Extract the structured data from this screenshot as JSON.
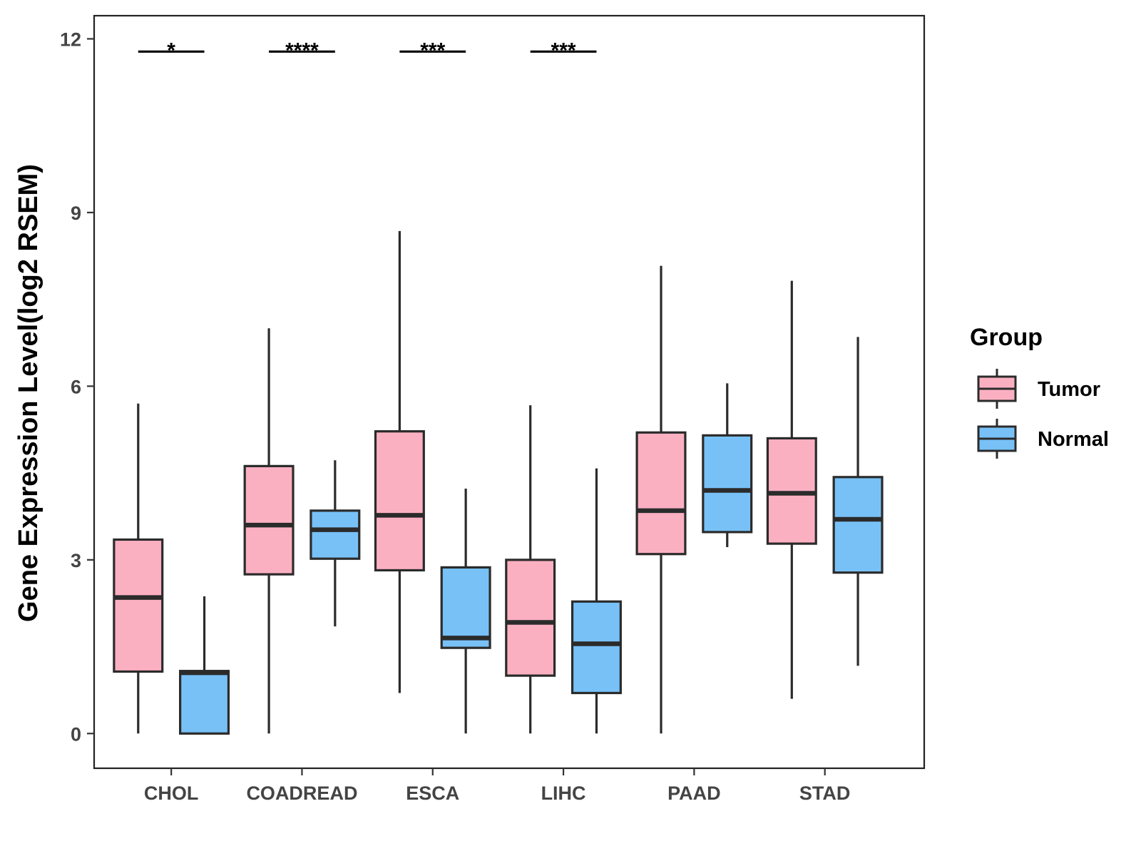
{
  "chart_data": {
    "type": "boxplot",
    "ylabel": "Gene Expression Level(log2 RSEM)",
    "xlabel": "",
    "ylim": [
      -0.6,
      12.4
    ],
    "yticks": [
      0,
      3,
      6,
      9,
      12
    ],
    "ytick_labels": [
      "0",
      "3",
      "6",
      "9",
      "12"
    ],
    "categories": [
      "CHOL",
      "COADREAD",
      "ESCA",
      "LIHC",
      "PAAD",
      "STAD"
    ],
    "legend": {
      "title": "Group",
      "position": "right",
      "entries": [
        {
          "name": "Tumor",
          "color": "#FBB0C2"
        },
        {
          "name": "Normal",
          "color": "#78C1F7"
        }
      ]
    },
    "series": [
      {
        "name": "Tumor",
        "color": "#FBB0C2",
        "boxes": [
          {
            "min": 0.0,
            "q1": 1.07,
            "median": 2.35,
            "q3": 3.35,
            "max": 5.7
          },
          {
            "min": 0.0,
            "q1": 2.75,
            "median": 3.6,
            "q3": 4.62,
            "max": 7.0
          },
          {
            "min": 0.7,
            "q1": 2.82,
            "median": 3.77,
            "q3": 5.22,
            "max": 8.68
          },
          {
            "min": 0.0,
            "q1": 1.0,
            "median": 1.92,
            "q3": 3.0,
            "max": 5.67
          },
          {
            "min": 0.0,
            "q1": 3.1,
            "median": 3.85,
            "q3": 5.2,
            "max": 8.08
          },
          {
            "min": 0.6,
            "q1": 3.28,
            "median": 4.15,
            "q3": 5.1,
            "max": 7.82
          }
        ]
      },
      {
        "name": "Normal",
        "color": "#78C1F7",
        "boxes": [
          {
            "min": 0.0,
            "q1": 0.0,
            "median": 1.05,
            "q3": 1.08,
            "max": 2.37
          },
          {
            "min": 1.85,
            "q1": 3.02,
            "median": 3.52,
            "q3": 3.85,
            "max": 4.72
          },
          {
            "min": 0.0,
            "q1": 1.48,
            "median": 1.65,
            "q3": 2.87,
            "max": 4.23
          },
          {
            "min": 0.0,
            "q1": 0.7,
            "median": 1.55,
            "q3": 2.28,
            "max": 4.58
          },
          {
            "min": 3.22,
            "q1": 3.48,
            "median": 4.2,
            "q3": 5.15,
            "max": 6.05
          },
          {
            "min": 1.17,
            "q1": 2.78,
            "median": 3.7,
            "q3": 4.43,
            "max": 6.85
          }
        ]
      }
    ],
    "significance": [
      {
        "category": "CHOL",
        "label": "*"
      },
      {
        "category": "COADREAD",
        "label": "****"
      },
      {
        "category": "ESCA",
        "label": "***"
      },
      {
        "category": "LIHC",
        "label": "***"
      }
    ],
    "significance_y": 11.78
  }
}
